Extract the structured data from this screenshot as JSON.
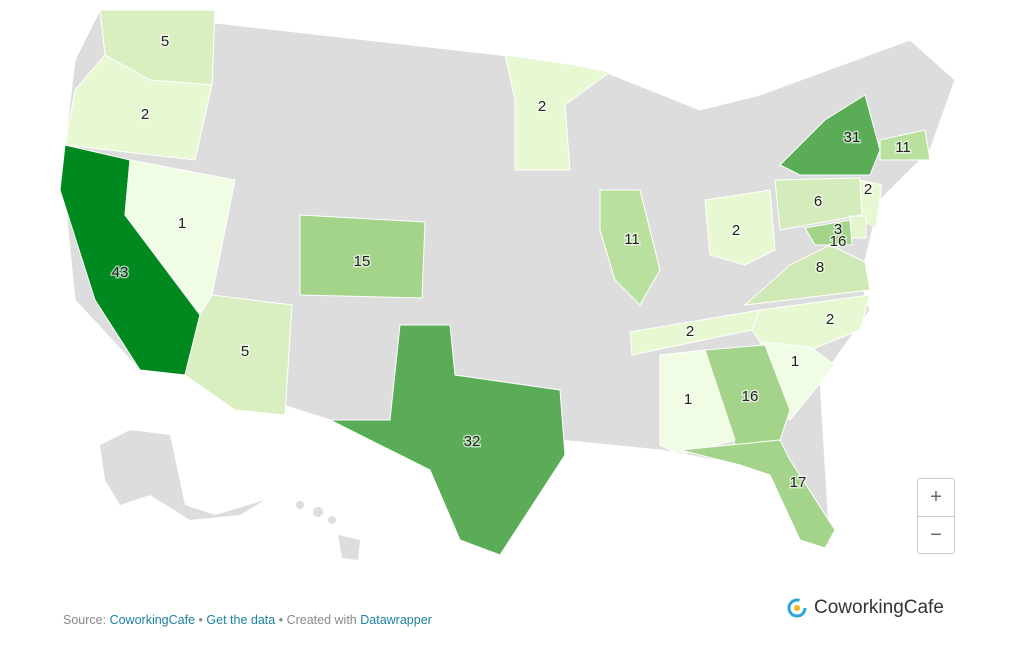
{
  "map": {
    "regions": [
      {
        "value": 5,
        "color": "#d9efc0"
      },
      {
        "value": 2,
        "color": "#e8f8d2"
      },
      {
        "value": 43,
        "color": "#00891f"
      },
      {
        "value": 1,
        "color": "#f0fce3"
      },
      {
        "value": 5,
        "color": "#d9efc0"
      },
      {
        "value": 15,
        "color": "#a4d38a"
      },
      {
        "value": 32,
        "color": "#5aac57"
      },
      {
        "value": 2,
        "color": "#e8f8d2"
      },
      {
        "value": 11,
        "color": "#b9e09f"
      },
      {
        "value": 2,
        "color": "#e8f8d2"
      },
      {
        "value": 31,
        "color": "#5aac57"
      },
      {
        "value": 11,
        "color": "#b9e09f"
      },
      {
        "value": 6,
        "color": "#d4ecbb"
      },
      {
        "value": 2,
        "color": "#e8f8d2"
      },
      {
        "value": 3,
        "color": "#e3f5cd"
      },
      {
        "value": 16,
        "color": "#a4d38a"
      },
      {
        "value": 8,
        "color": "#cfe9b5"
      },
      {
        "value": 2,
        "color": "#e8f8d2"
      },
      {
        "value": 2,
        "color": "#e8f8d2"
      },
      {
        "value": 1,
        "color": "#f0fce3"
      },
      {
        "value": 16,
        "color": "#a4d38a"
      },
      {
        "value": 1,
        "color": "#f0fce3"
      },
      {
        "value": 17,
        "color": "#a4d38a"
      }
    ],
    "zoom_in": "+",
    "zoom_out": "−"
  },
  "footer": {
    "source_label": "Source:",
    "source_link": "CoworkingCafe",
    "separator": "•",
    "data_link": "Get the data",
    "created_label": "Created with",
    "tool_link": "Datawrapper"
  },
  "logo": {
    "text": "CoworkingCafe"
  }
}
